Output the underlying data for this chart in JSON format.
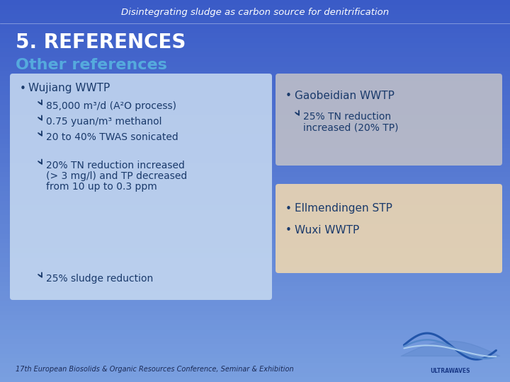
{
  "title": "Disintegrating sludge as carbon source for denitrification",
  "section_header": "5. REFERENCES",
  "sub_header": "Other references",
  "bg_color_top": "#3a5bc7",
  "bg_color_mid": "#6a8fd8",
  "bg_color_bot": "#9ab5e8",
  "left_box_color": "#c5d8f0",
  "right_box1_color": "#c0c0c8",
  "right_box2_color": "#f0d8b0",
  "left_text_color": "#1a3a6b",
  "right1_text_color": "#1a3a6b",
  "right2_text_color": "#1a3a6b",
  "header_text_color": "#ffffff",
  "section_text_color": "#ffffff",
  "sub_text_color": "#55aadd",
  "footer_text_color": "#1a2a55",
  "footer": "17th European Biosolids & Organic Resources Conference, Seminar & Exhibition"
}
